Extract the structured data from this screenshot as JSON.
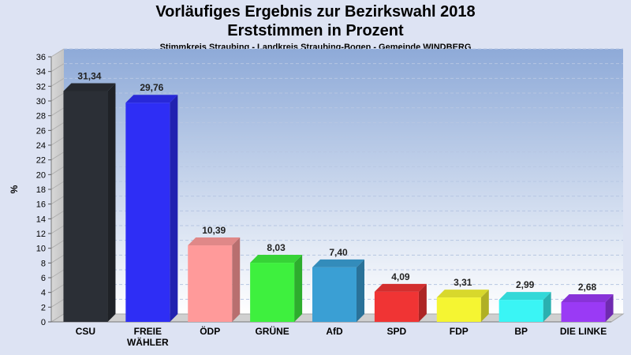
{
  "chart_data": {
    "type": "bar",
    "title": "Vorläufiges Ergebnis zur Bezirkswahl 2018",
    "subtitle": "Erststimmen in Prozent",
    "subsubtitle": "Stimmkreis Straubing - Landkreis Straubing-Bogen - Gemeinde WINDBERG",
    "ylabel": "%",
    "ylim": [
      0,
      36
    ],
    "ytick_step": 2,
    "grid": true,
    "categories": [
      [
        "CSU"
      ],
      [
        "FREIE",
        "WÄHLER"
      ],
      [
        "ÖDP"
      ],
      [
        "GRÜNE"
      ],
      [
        "AfD"
      ],
      [
        "SPD"
      ],
      [
        "FDP"
      ],
      [
        "BP"
      ],
      [
        "DIE LINKE"
      ]
    ],
    "values": [
      31.34,
      29.76,
      10.39,
      8.03,
      7.4,
      4.09,
      3.31,
      2.99,
      2.68
    ],
    "value_labels": [
      "31,34",
      "29,76",
      "10,39",
      "8,03",
      "7,40",
      "4,09",
      "3,31",
      "2,99",
      "2,68"
    ],
    "colors": [
      "#2b2f36",
      "#2e2ef5",
      "#ff9a9a",
      "#3ef03e",
      "#3a9fd4",
      "#f03434",
      "#f5f532",
      "#3af5f5",
      "#9a3af5"
    ]
  }
}
